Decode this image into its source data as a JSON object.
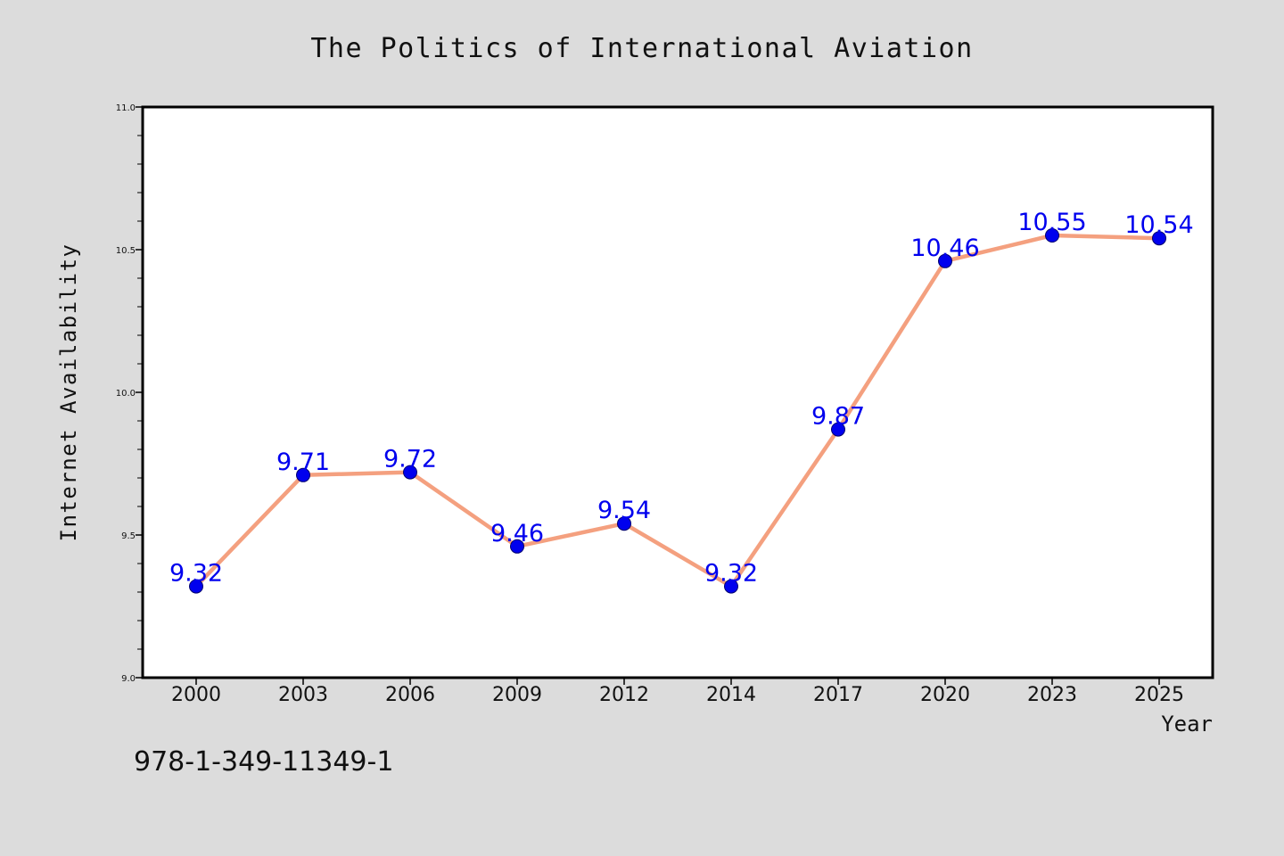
{
  "chart_data": {
    "type": "line",
    "title": "The Politics of International Aviation",
    "xlabel": "Year",
    "ylabel": "Internet Availability",
    "categories": [
      "2000",
      "2003",
      "2006",
      "2009",
      "2012",
      "2014",
      "2017",
      "2020",
      "2023",
      "2025"
    ],
    "series": [
      {
        "values": [
          9.32,
          9.71,
          9.72,
          9.46,
          9.54,
          9.32,
          9.87,
          10.46,
          10.55,
          10.54
        ]
      }
    ],
    "data_labels": [
      "9.32",
      "9.71",
      "9.72",
      "9.46",
      "9.54",
      "9.32",
      "9.87",
      "10.46",
      "10.55",
      "10.54"
    ],
    "ylim": [
      9.0,
      11.0
    ],
    "y_ticks": [
      "9.0",
      "9.5",
      "10.0",
      "10.5",
      "11.0"
    ],
    "y_tick_values": [
      9.0,
      9.5,
      10.0,
      10.5,
      11.0
    ],
    "y_minor_step": 0.1,
    "grid": false,
    "legend": "none",
    "colors": {
      "line": "#f4a07f",
      "marker": "#0000ee",
      "marker_edge": "#00006e",
      "data_label": "#0000ee",
      "background": "#dcdcdc",
      "plot_area": "#ffffff"
    }
  },
  "footer_code": "978-1-349-11349-1"
}
